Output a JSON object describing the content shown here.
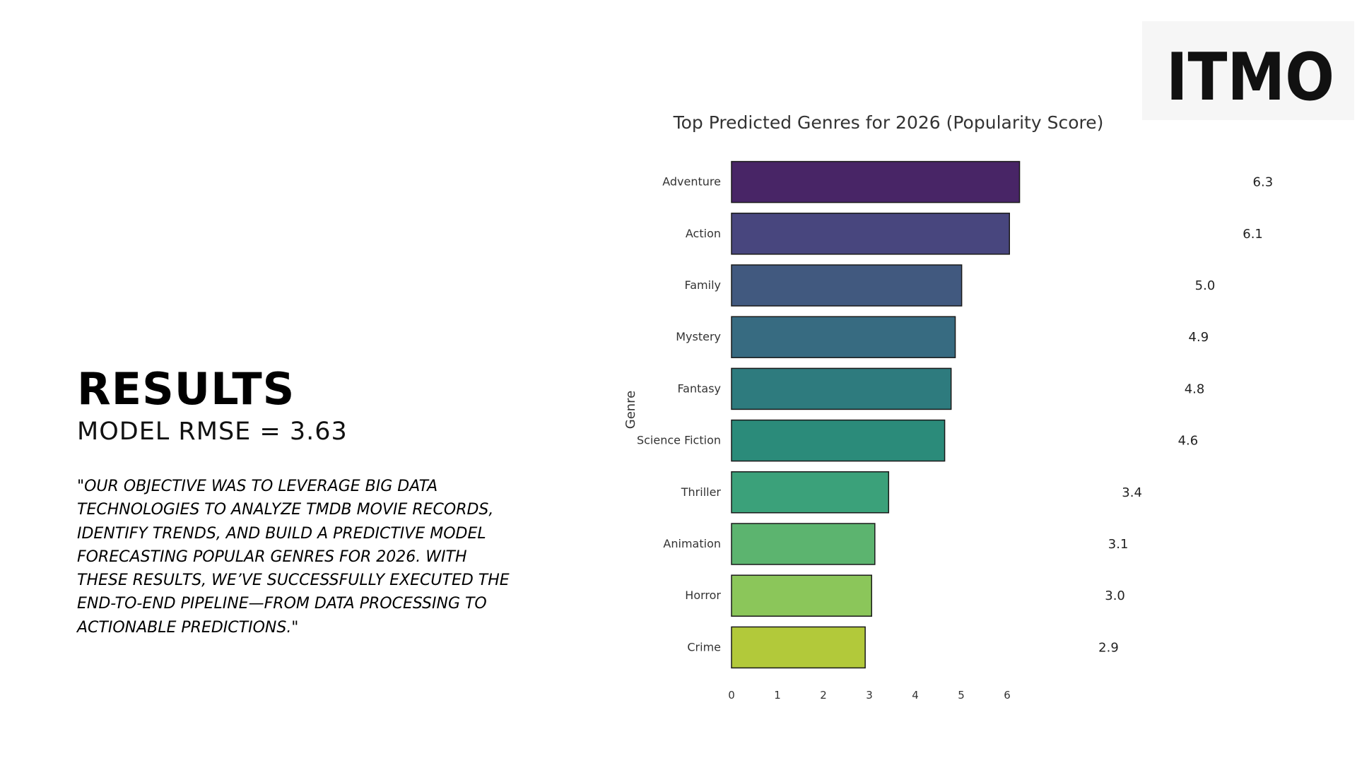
{
  "slide": {
    "heading": "RESULTS",
    "metric": "MODEL RMSE = 3.63",
    "quote": "\"OUR OBJECTIVE WAS TO LEVERAGE BIG DATA TECHNOLOGIES TO ANALYZE TMDB MOVIE RECORDS, IDENTIFY TRENDS, AND BUILD A PREDICTIVE MODEL FORECASTING POPULAR GENRES FOR 2026. WITH THESE RESULTS, WE’VE SUCCESSFULLY EXECUTED THE END-TO-END PIPELINE—FROM DATA PROCESSING TO ACTIONABLE PREDICTIONS.\""
  },
  "logo": {
    "text": "ITMO",
    "color": "#111111"
  },
  "chart_data": {
    "type": "bar",
    "orientation": "horizontal",
    "title": "Top Predicted Genres for 2026 (Popularity Score)",
    "ylabel": "Genre",
    "xlabel": "",
    "categories": [
      "Adventure",
      "Action",
      "Family",
      "Mystery",
      "Fantasy",
      "Science Fiction",
      "Thriller",
      "Animation",
      "Horror",
      "Crime"
    ],
    "values": [
      6.27,
      6.05,
      5.01,
      4.87,
      4.78,
      4.64,
      3.42,
      3.12,
      3.05,
      2.91
    ],
    "value_labels": [
      "6.3",
      "6.1",
      "5.0",
      "4.9",
      "4.8",
      "4.6",
      "3.4",
      "3.1",
      "3.0",
      "2.9"
    ],
    "xticks": [
      "0",
      "1",
      "2",
      "3",
      "4",
      "5",
      "6"
    ],
    "xlim": [
      0,
      6
    ],
    "grid": false,
    "colors": [
      "#482566",
      "#48467e",
      "#41597f",
      "#376b81",
      "#2e7b7e",
      "#2b8b7a",
      "#3ba17a",
      "#5cb46f",
      "#8bc65a",
      "#b2c93a"
    ]
  }
}
